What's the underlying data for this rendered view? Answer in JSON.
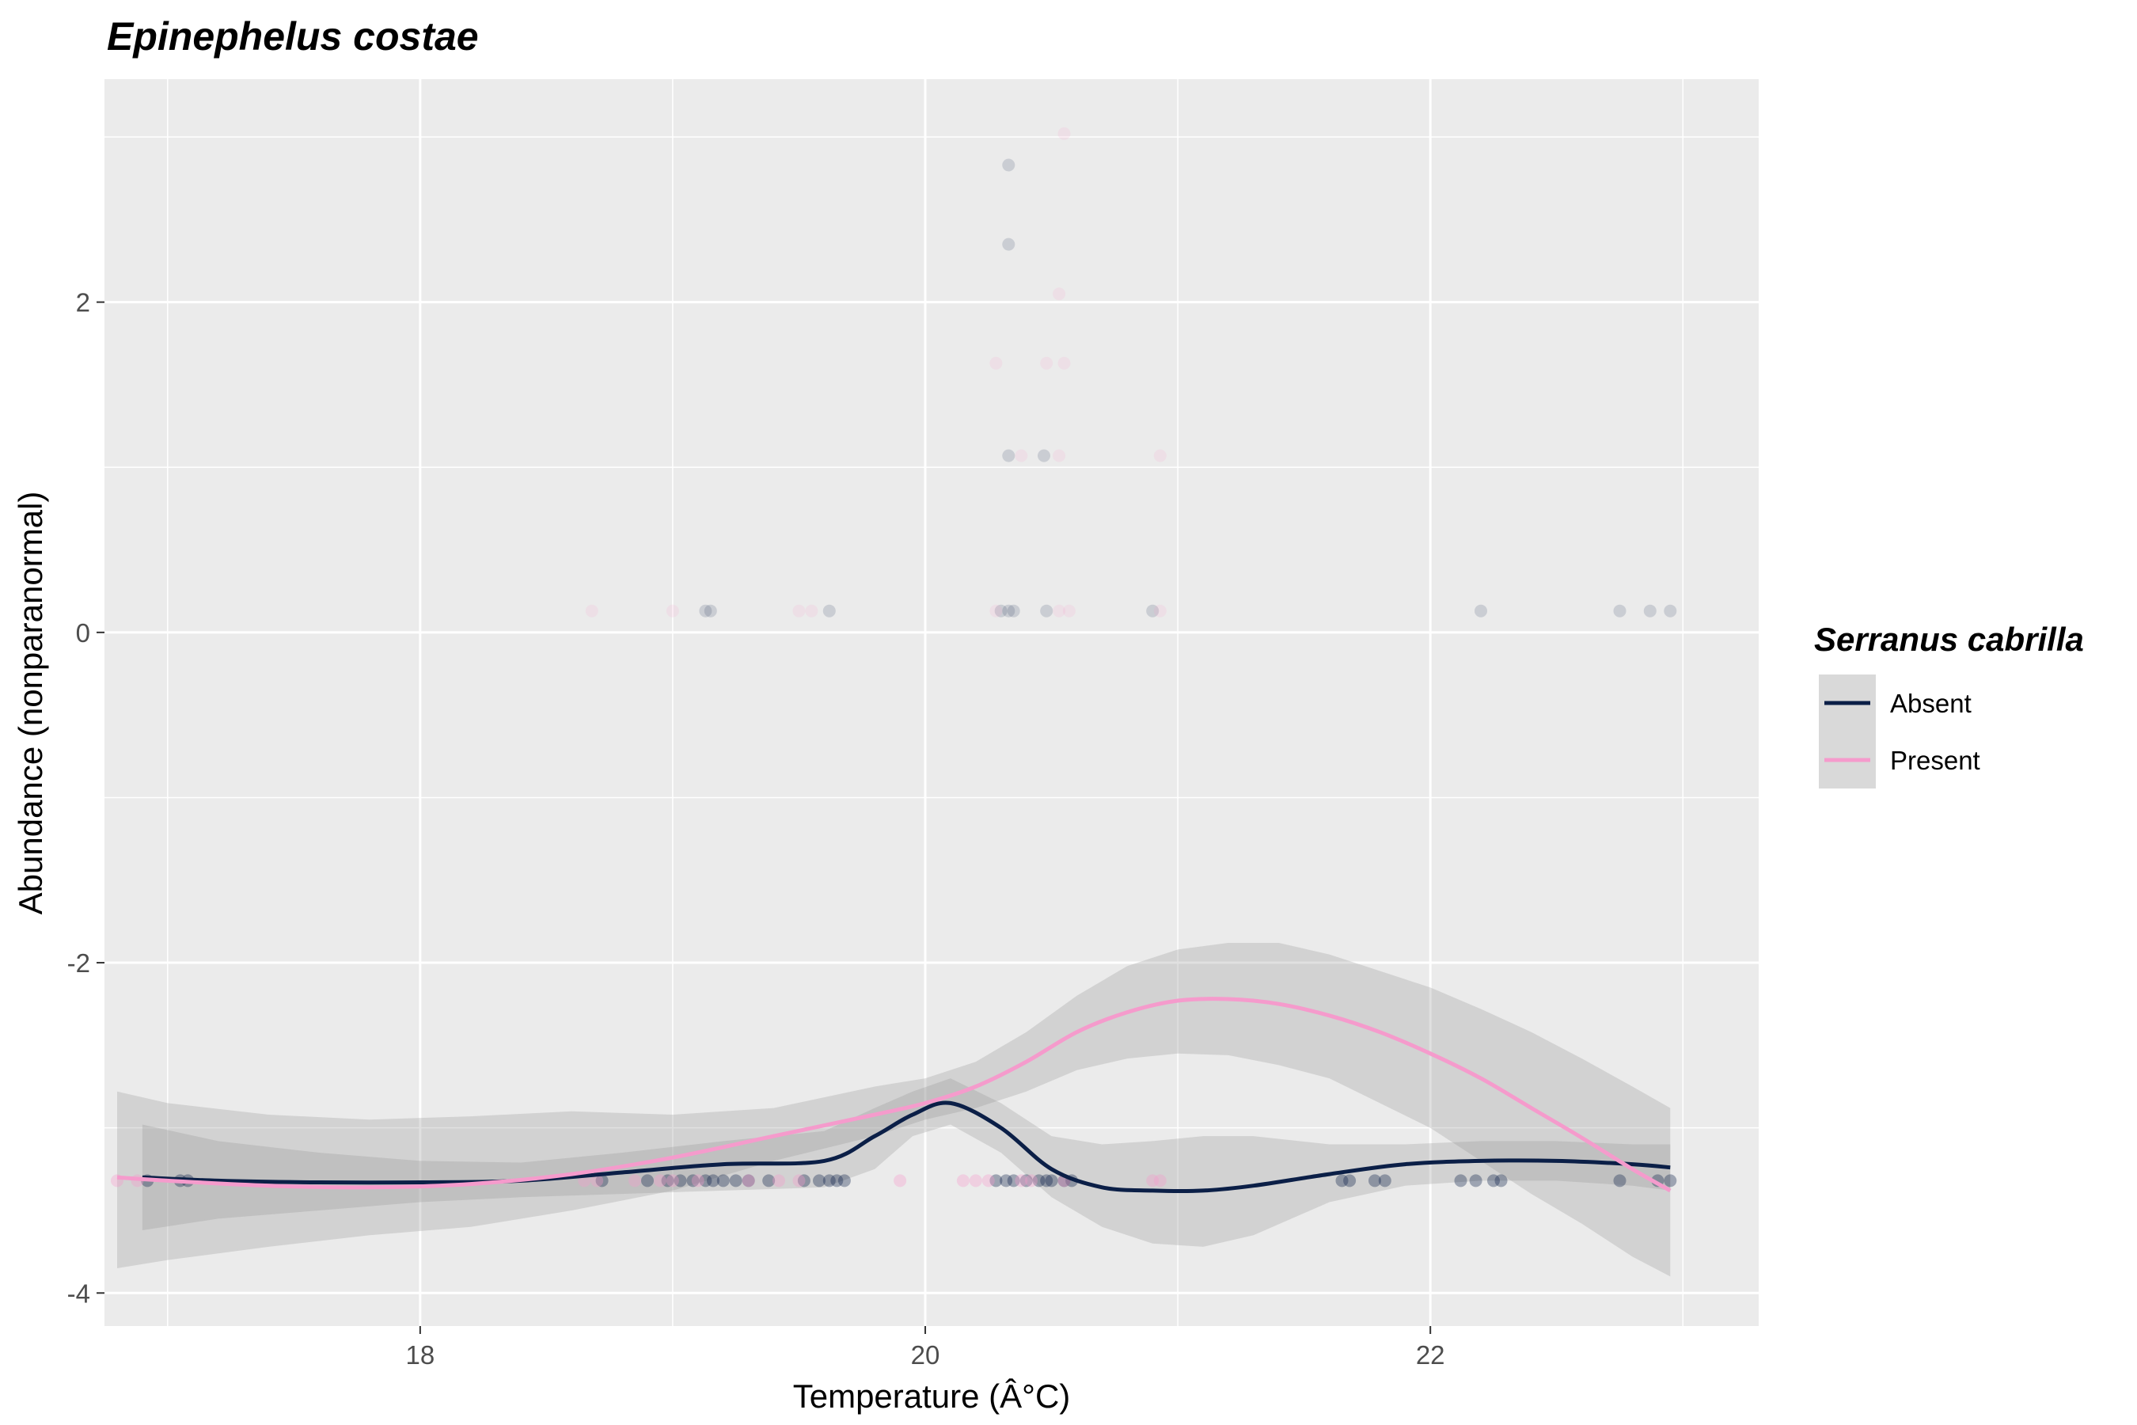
{
  "chart_data": {
    "type": "scatter",
    "title": "Epinephelus costae",
    "xlabel": "Temperature (Â°C)",
    "ylabel": "Abundance (nonparanormal)",
    "xlim": [
      16.75,
      23.3
    ],
    "ylim": [
      -4.2,
      3.35
    ],
    "xticks": [
      18,
      20,
      22
    ],
    "yticks": [
      -4,
      -2,
      0,
      2
    ],
    "xtick_labels": [
      "18",
      "20",
      "22"
    ],
    "ytick_labels": [
      "-4",
      "-2",
      "0",
      "2"
    ],
    "grid": true,
    "legend": {
      "title": "Serranus cabrilla",
      "position": "right",
      "entries": [
        {
          "label": "Absent",
          "color": "#0b1f47"
        },
        {
          "label": "Present",
          "color": "#f59bcc"
        }
      ]
    },
    "colors": {
      "Absent": "#0b1f47",
      "Present": "#f59bcc",
      "ribbon": "#999999",
      "panel": "#ebebeb",
      "grid": "#ffffff"
    },
    "series": [
      {
        "name": "Absent",
        "points": [
          [
            16.92,
            -3.32
          ],
          [
            17.05,
            -3.32
          ],
          [
            17.08,
            -3.32
          ],
          [
            18.72,
            -3.32
          ],
          [
            18.9,
            -3.32
          ],
          [
            18.98,
            -3.32
          ],
          [
            19.03,
            -3.32
          ],
          [
            19.08,
            -3.32
          ],
          [
            19.13,
            -3.32
          ],
          [
            19.16,
            -3.32
          ],
          [
            19.2,
            -3.32
          ],
          [
            19.25,
            -3.32
          ],
          [
            19.3,
            -3.32
          ],
          [
            19.38,
            -3.32
          ],
          [
            19.52,
            -3.32
          ],
          [
            19.58,
            -3.32
          ],
          [
            19.62,
            -3.32
          ],
          [
            19.65,
            -3.32
          ],
          [
            19.68,
            -3.32
          ],
          [
            20.28,
            -3.32
          ],
          [
            20.32,
            -3.32
          ],
          [
            20.35,
            -3.32
          ],
          [
            20.4,
            -3.32
          ],
          [
            20.45,
            -3.32
          ],
          [
            20.48,
            -3.32
          ],
          [
            20.5,
            -3.32
          ],
          [
            20.55,
            -3.32
          ],
          [
            20.58,
            -3.32
          ],
          [
            21.65,
            -3.32
          ],
          [
            21.68,
            -3.32
          ],
          [
            21.78,
            -3.32
          ],
          [
            21.82,
            -3.32
          ],
          [
            22.12,
            -3.32
          ],
          [
            22.18,
            -3.32
          ],
          [
            22.25,
            -3.32
          ],
          [
            22.28,
            -3.32
          ],
          [
            22.75,
            -3.32
          ],
          [
            22.9,
            -3.32
          ],
          [
            22.95,
            -3.32
          ],
          [
            19.13,
            0.13
          ],
          [
            19.15,
            0.13
          ],
          [
            19.62,
            0.13
          ],
          [
            20.3,
            0.13
          ],
          [
            20.33,
            0.13
          ],
          [
            20.35,
            0.13
          ],
          [
            20.48,
            0.13
          ],
          [
            20.9,
            0.13
          ],
          [
            22.2,
            0.13
          ],
          [
            22.75,
            0.13
          ],
          [
            22.87,
            0.13
          ],
          [
            22.95,
            0.13
          ],
          [
            20.33,
            1.07
          ],
          [
            20.47,
            1.07
          ],
          [
            20.33,
            2.35
          ],
          [
            20.33,
            2.83
          ]
        ],
        "smooth": {
          "x": [
            16.9,
            17.2,
            17.6,
            18.0,
            18.4,
            18.8,
            19.2,
            19.6,
            19.8,
            19.95,
            20.1,
            20.3,
            20.5,
            20.7,
            20.9,
            21.1,
            21.3,
            21.6,
            21.9,
            22.2,
            22.5,
            22.8,
            22.95
          ],
          "y": [
            -3.3,
            -3.32,
            -3.33,
            -3.33,
            -3.32,
            -3.27,
            -3.22,
            -3.2,
            -3.05,
            -2.92,
            -2.85,
            -3.0,
            -3.25,
            -3.36,
            -3.38,
            -3.38,
            -3.35,
            -3.28,
            -3.22,
            -3.2,
            -3.2,
            -3.22,
            -3.24
          ],
          "lower": [
            -3.62,
            -3.55,
            -3.5,
            -3.45,
            -3.42,
            -3.4,
            -3.38,
            -3.36,
            -3.25,
            -3.05,
            -2.98,
            -3.15,
            -3.42,
            -3.6,
            -3.7,
            -3.72,
            -3.65,
            -3.45,
            -3.35,
            -3.32,
            -3.32,
            -3.35,
            -3.38
          ],
          "upper": [
            -2.98,
            -3.08,
            -3.15,
            -3.2,
            -3.21,
            -3.15,
            -3.08,
            -3.02,
            -2.88,
            -2.78,
            -2.7,
            -2.85,
            -3.05,
            -3.1,
            -3.08,
            -3.05,
            -3.05,
            -3.1,
            -3.1,
            -3.08,
            -3.08,
            -3.1,
            -3.1
          ]
        }
      },
      {
        "name": "Present",
        "points": [
          [
            16.8,
            -3.32
          ],
          [
            16.88,
            -3.32
          ],
          [
            18.65,
            -3.32
          ],
          [
            18.7,
            -3.32
          ],
          [
            18.85,
            -3.32
          ],
          [
            18.95,
            -3.32
          ],
          [
            19.0,
            -3.32
          ],
          [
            19.1,
            -3.32
          ],
          [
            19.3,
            -3.32
          ],
          [
            19.42,
            -3.32
          ],
          [
            19.5,
            -3.32
          ],
          [
            19.9,
            -3.32
          ],
          [
            20.15,
            -3.32
          ],
          [
            20.2,
            -3.32
          ],
          [
            20.25,
            -3.32
          ],
          [
            20.38,
            -3.32
          ],
          [
            20.42,
            -3.32
          ],
          [
            20.55,
            -3.32
          ],
          [
            20.9,
            -3.32
          ],
          [
            20.93,
            -3.32
          ],
          [
            18.68,
            0.13
          ],
          [
            19.0,
            0.13
          ],
          [
            19.5,
            0.13
          ],
          [
            19.55,
            0.13
          ],
          [
            20.28,
            0.13
          ],
          [
            20.53,
            0.13
          ],
          [
            20.57,
            0.13
          ],
          [
            20.93,
            0.13
          ],
          [
            20.38,
            1.07
          ],
          [
            20.53,
            1.07
          ],
          [
            20.93,
            1.07
          ],
          [
            20.28,
            1.63
          ],
          [
            20.48,
            1.63
          ],
          [
            20.55,
            1.63
          ],
          [
            20.53,
            2.05
          ],
          [
            20.55,
            3.02
          ]
        ],
        "smooth": {
          "x": [
            16.8,
            17.0,
            17.4,
            17.8,
            18.2,
            18.6,
            19.0,
            19.4,
            19.8,
            20.0,
            20.2,
            20.4,
            20.6,
            20.8,
            21.0,
            21.2,
            21.4,
            21.6,
            21.8,
            22.0,
            22.2,
            22.4,
            22.6,
            22.8,
            22.95
          ],
          "y": [
            -3.3,
            -3.32,
            -3.35,
            -3.36,
            -3.34,
            -3.28,
            -3.18,
            -3.05,
            -2.92,
            -2.85,
            -2.75,
            -2.6,
            -2.42,
            -2.3,
            -2.23,
            -2.22,
            -2.25,
            -2.32,
            -2.42,
            -2.55,
            -2.7,
            -2.88,
            -3.06,
            -3.25,
            -3.38
          ],
          "lower": [
            -3.85,
            -3.8,
            -3.72,
            -3.65,
            -3.6,
            -3.5,
            -3.38,
            -3.2,
            -3.05,
            -2.95,
            -2.88,
            -2.78,
            -2.65,
            -2.58,
            -2.55,
            -2.56,
            -2.62,
            -2.7,
            -2.85,
            -3.0,
            -3.2,
            -3.4,
            -3.58,
            -3.78,
            -3.9
          ],
          "upper": [
            -2.78,
            -2.85,
            -2.92,
            -2.95,
            -2.93,
            -2.9,
            -2.92,
            -2.88,
            -2.75,
            -2.7,
            -2.6,
            -2.42,
            -2.2,
            -2.02,
            -1.92,
            -1.88,
            -1.88,
            -1.95,
            -2.05,
            -2.15,
            -2.28,
            -2.42,
            -2.58,
            -2.75,
            -2.88
          ]
        }
      }
    ]
  }
}
